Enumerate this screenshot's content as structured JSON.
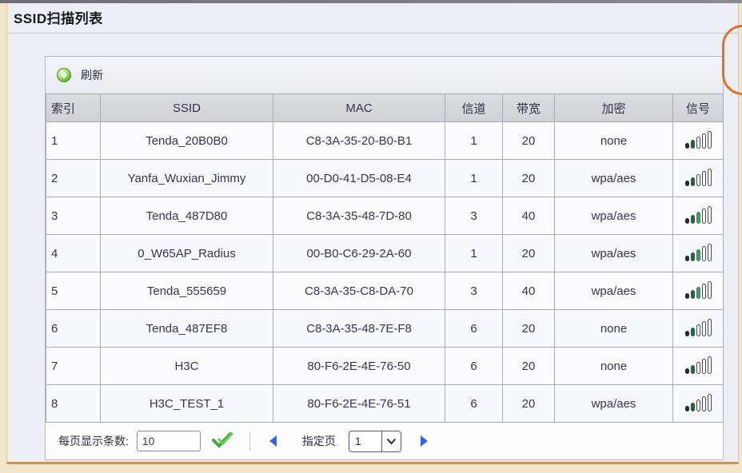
{
  "window": {
    "title": "SSID扫描列表"
  },
  "toolbar": {
    "refresh_label": "刷新"
  },
  "table": {
    "columns": [
      "索引",
      "SSID",
      "MAC",
      "信道",
      "带宽",
      "加密",
      "信号"
    ],
    "rows": [
      {
        "index": "1",
        "ssid": "Tenda_20B0B0",
        "mac": "C8-3A-35-20-B0-B1",
        "channel": "1",
        "bandwidth": "20",
        "encryption": "none",
        "signal_bars": 2
      },
      {
        "index": "2",
        "ssid": "Yanfa_Wuxian_Jimmy",
        "mac": "00-D0-41-D5-08-E4",
        "channel": "1",
        "bandwidth": "20",
        "encryption": "wpa/aes",
        "signal_bars": 2
      },
      {
        "index": "3",
        "ssid": "Tenda_487D80",
        "mac": "C8-3A-35-48-7D-80",
        "channel": "3",
        "bandwidth": "40",
        "encryption": "wpa/aes",
        "signal_bars": 3
      },
      {
        "index": "4",
        "ssid": "0_W65AP_Radius",
        "mac": "00-B0-C6-29-2A-60",
        "channel": "1",
        "bandwidth": "20",
        "encryption": "wpa/aes",
        "signal_bars": 3
      },
      {
        "index": "5",
        "ssid": "Tenda_555659",
        "mac": "C8-3A-35-C8-DA-70",
        "channel": "3",
        "bandwidth": "40",
        "encryption": "wpa/aes",
        "signal_bars": 3
      },
      {
        "index": "6",
        "ssid": "Tenda_487EF8",
        "mac": "C8-3A-35-48-7E-F8",
        "channel": "6",
        "bandwidth": "20",
        "encryption": "none",
        "signal_bars": 2
      },
      {
        "index": "7",
        "ssid": "H3C",
        "mac": "80-F6-2E-4E-76-50",
        "channel": "6",
        "bandwidth": "20",
        "encryption": "none",
        "signal_bars": 2
      },
      {
        "index": "8",
        "ssid": "H3C_TEST_1",
        "mac": "80-F6-2E-4E-76-51",
        "channel": "6",
        "bandwidth": "20",
        "encryption": "wpa/aes",
        "signal_bars": 2
      }
    ]
  },
  "pagination": {
    "per_page_label": "每页显示条数:",
    "per_page_value": "10",
    "page_select_label": "指定页",
    "page_value": "1"
  },
  "icons": {
    "refresh": "refresh-orb-icon",
    "confirm": "check-icon",
    "prev": "prev-page-icon",
    "next": "next-page-icon",
    "dropdown": "chevron-down-icon",
    "signal": "signal-bars-icon"
  },
  "colors": {
    "annotation_orange": "#e0732c",
    "arrow_blue": "#2f6bd8",
    "check_green": "#3fae3f",
    "signal_filled": [
      "#1e3029",
      "#2e5f46",
      "#479d5e"
    ],
    "header_bg": "#d6d7db",
    "cell_text": "#3a3156",
    "frame_cream": "#f2e5c9",
    "frame_tan": "#c79464"
  }
}
